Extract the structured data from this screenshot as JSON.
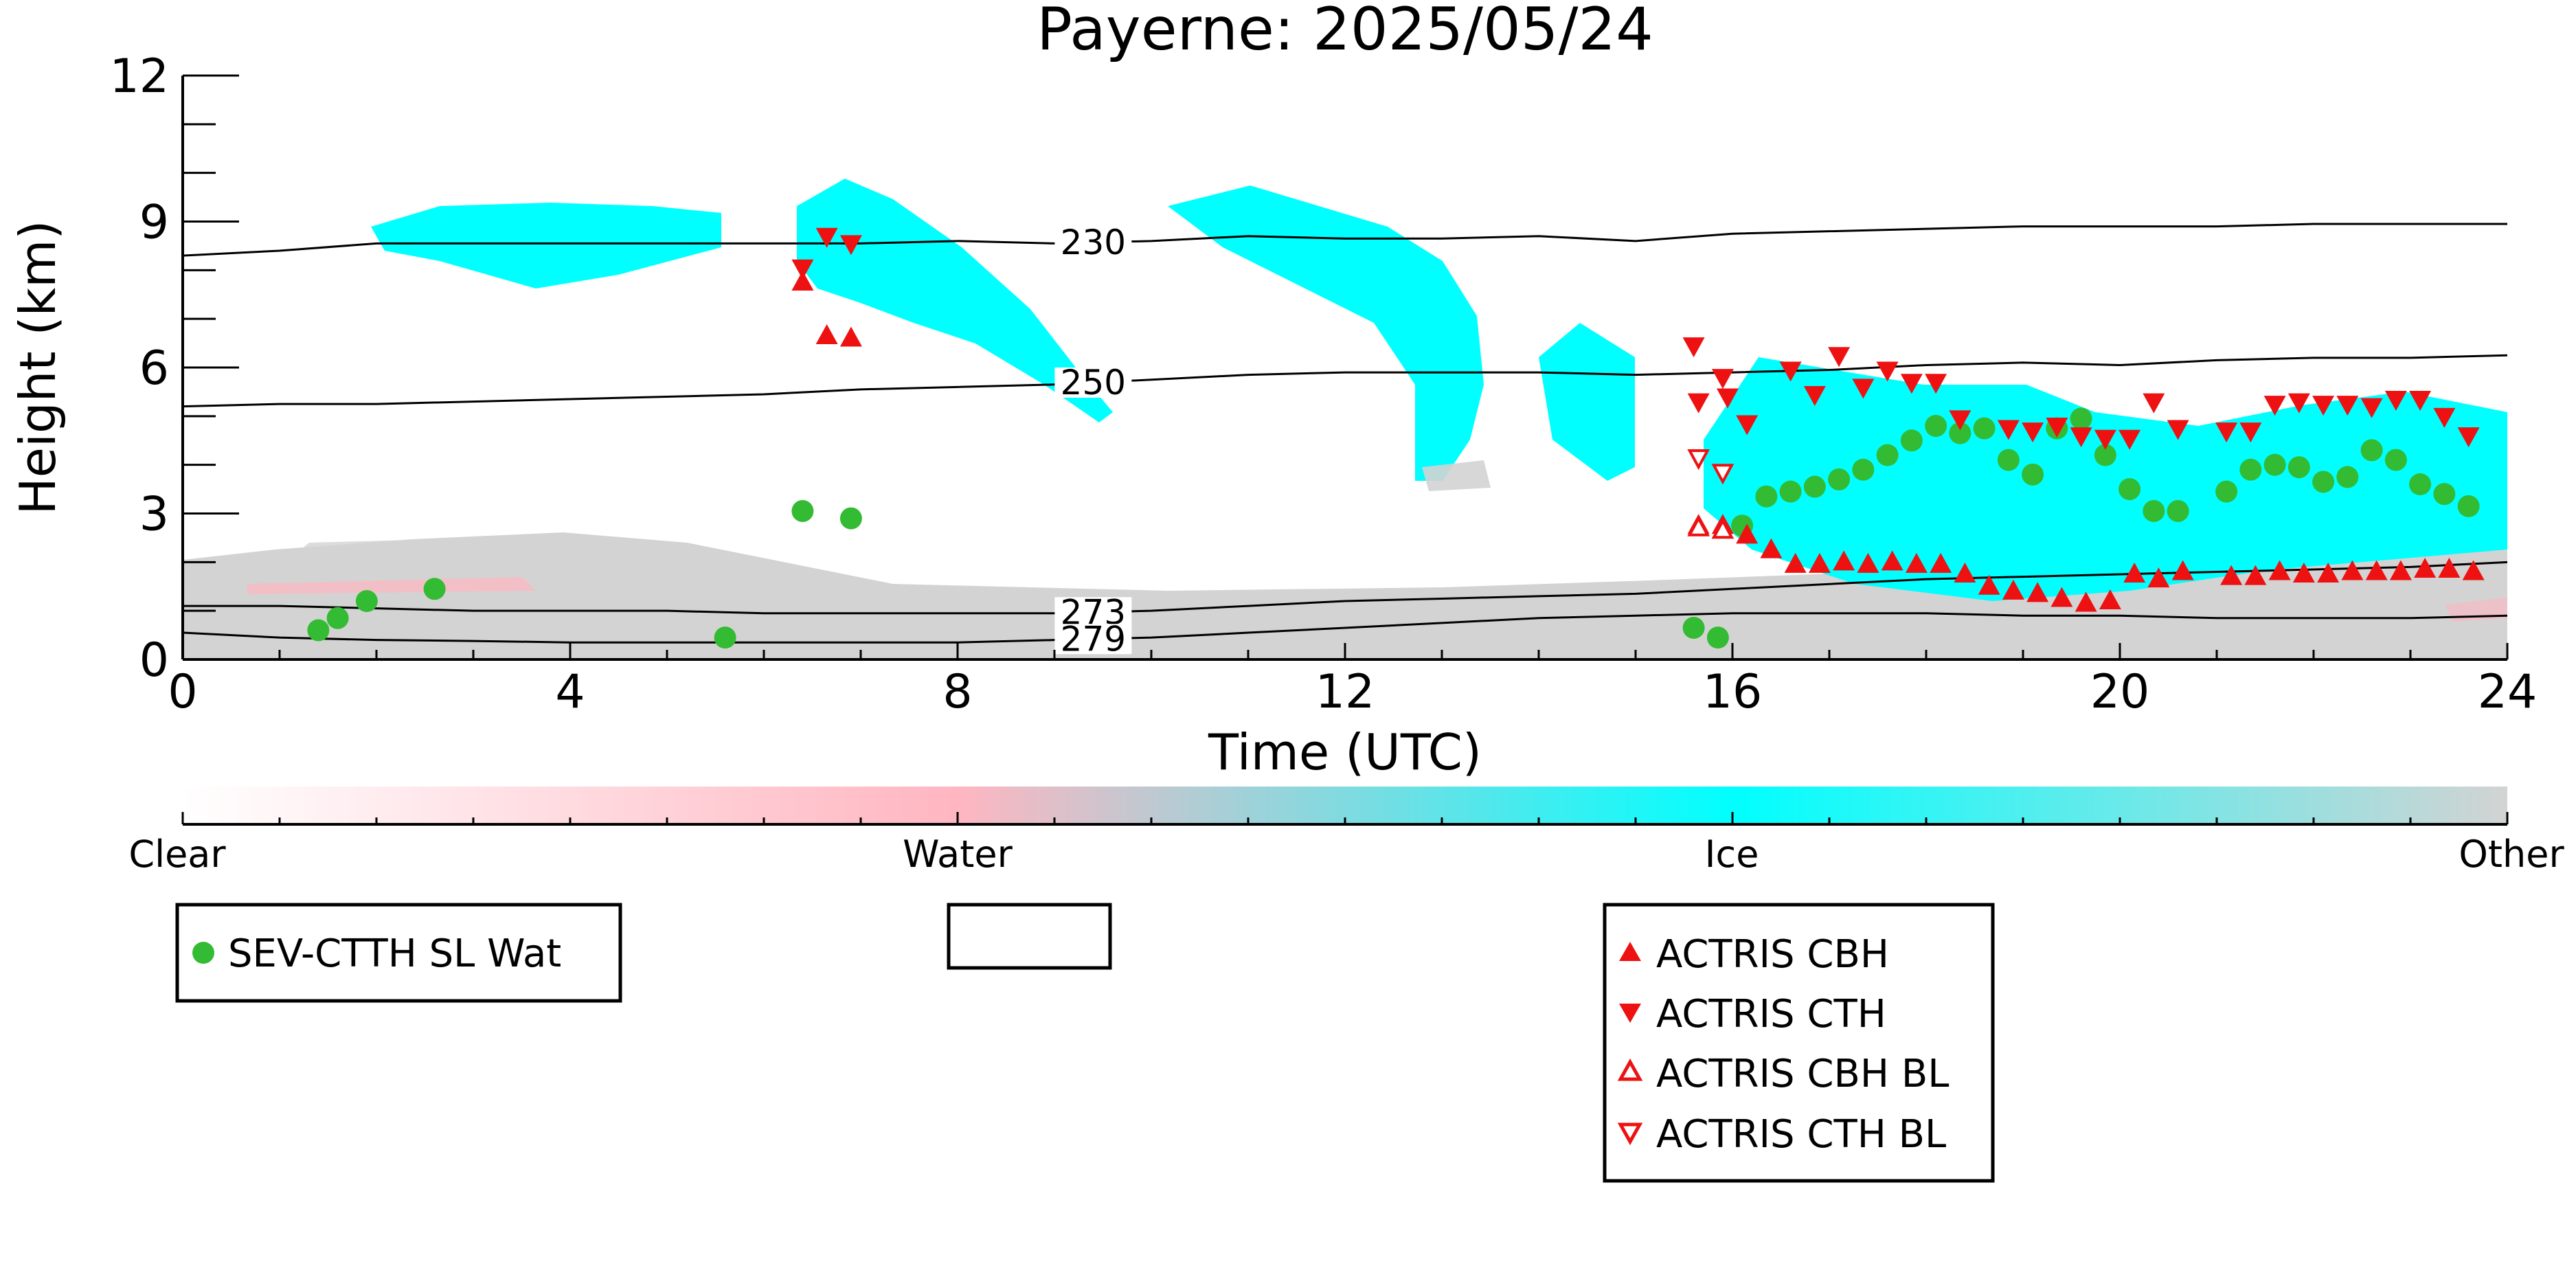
{
  "chart_data": {
    "type": "scatter",
    "title": "Payerne: 2025/05/24",
    "xlabel": "Time (UTC)",
    "ylabel": "Height (km)",
    "xlim": [
      0,
      24
    ],
    "ylim": [
      0,
      12
    ],
    "xticks": [
      0,
      4,
      8,
      12,
      16,
      20,
      24
    ],
    "yticks": [
      0,
      3,
      6,
      9,
      12
    ],
    "background": "cloud-phase classification field (Clear / Water / Ice / Other)",
    "contours": [
      {
        "label": "230",
        "label_x": 9.4,
        "x": [
          0,
          1,
          2,
          3,
          4,
          5,
          6,
          7,
          8,
          9,
          10,
          11,
          12,
          13,
          14,
          15,
          16,
          17,
          18,
          19,
          20,
          21,
          22,
          23,
          24
        ],
        "y": [
          8.3,
          8.4,
          8.55,
          8.55,
          8.55,
          8.55,
          8.55,
          8.55,
          8.6,
          8.55,
          8.6,
          8.7,
          8.65,
          8.65,
          8.7,
          8.6,
          8.75,
          8.8,
          8.85,
          8.9,
          8.9,
          8.9,
          8.95,
          8.95,
          8.95
        ]
      },
      {
        "label": "250",
        "label_x": 9.4,
        "x": [
          0,
          1,
          2,
          3,
          4,
          5,
          6,
          7,
          8,
          9,
          10,
          11,
          12,
          13,
          14,
          15,
          16,
          17,
          18,
          19,
          20,
          21,
          22,
          23,
          24
        ],
        "y": [
          5.2,
          5.25,
          5.25,
          5.3,
          5.35,
          5.4,
          5.45,
          5.55,
          5.6,
          5.65,
          5.75,
          5.85,
          5.9,
          5.9,
          5.9,
          5.85,
          5.9,
          5.95,
          6.05,
          6.1,
          6.05,
          6.15,
          6.2,
          6.2,
          6.25
        ]
      },
      {
        "label": "273",
        "label_x": 9.4,
        "x": [
          0,
          1,
          2,
          3,
          4,
          5,
          6,
          7,
          8,
          9,
          10,
          11,
          12,
          13,
          14,
          15,
          16,
          17,
          18,
          19,
          20,
          21,
          22,
          23,
          24
        ],
        "y": [
          1.1,
          1.1,
          1.05,
          1.0,
          1.0,
          1.0,
          0.95,
          0.95,
          0.95,
          0.95,
          1.0,
          1.1,
          1.2,
          1.25,
          1.3,
          1.35,
          1.45,
          1.55,
          1.65,
          1.7,
          1.75,
          1.8,
          1.85,
          1.9,
          2.0
        ]
      },
      {
        "label": "279",
        "label_x": 9.4,
        "x": [
          0,
          1,
          2,
          3,
          4,
          5,
          6,
          7,
          8,
          9,
          10,
          11,
          12,
          13,
          14,
          15,
          16,
          17,
          18,
          19,
          20,
          21,
          22,
          23,
          24
        ],
        "y": [
          0.55,
          0.45,
          0.4,
          0.38,
          0.35,
          0.35,
          0.35,
          0.35,
          0.35,
          0.4,
          0.45,
          0.55,
          0.65,
          0.75,
          0.85,
          0.9,
          0.95,
          0.95,
          0.95,
          0.9,
          0.9,
          0.85,
          0.85,
          0.85,
          0.9
        ]
      }
    ],
    "series": [
      {
        "name": "SEV-CTTH SL Wat",
        "marker": "filled-circle",
        "color": "#33bb33",
        "x": [
          1.4,
          1.6,
          1.9,
          2.6,
          5.6,
          6.4,
          6.9,
          15.6,
          15.85,
          16.1,
          16.35,
          16.6,
          16.85,
          17.1,
          17.35,
          17.6,
          17.85,
          18.1,
          18.35,
          18.6,
          18.85,
          19.1,
          19.35,
          19.6,
          19.85,
          20.1,
          20.35,
          20.6,
          21.1,
          21.35,
          21.6,
          21.85,
          22.1,
          22.35,
          22.6,
          22.85,
          23.1,
          23.35,
          23.6
        ],
        "y": [
          0.6,
          0.85,
          1.2,
          1.45,
          0.45,
          3.05,
          2.9,
          0.65,
          0.45,
          2.75,
          3.35,
          3.45,
          3.55,
          3.7,
          3.9,
          4.2,
          4.5,
          4.8,
          4.65,
          4.75,
          4.1,
          3.8,
          4.75,
          4.95,
          4.2,
          3.5,
          3.05,
          3.05,
          3.45,
          3.9,
          4.0,
          3.95,
          3.65,
          3.75,
          4.3,
          4.1,
          3.6,
          3.4,
          3.15
        ]
      },
      {
        "name": "ACTRIS CBH",
        "marker": "filled-triangle-up",
        "color": "#ee1111",
        "x": [
          6.4,
          6.65,
          6.9,
          15.65,
          15.9,
          16.15,
          16.4,
          16.65,
          16.9,
          17.15,
          17.4,
          17.65,
          17.9,
          18.15,
          18.4,
          18.65,
          18.9,
          19.15,
          19.4,
          19.65,
          19.9,
          20.15,
          20.4,
          20.65,
          21.15,
          21.4,
          21.65,
          21.9,
          22.15,
          22.4,
          22.65,
          22.9,
          23.15,
          23.4,
          23.65
        ],
        "y": [
          7.75,
          6.65,
          6.6,
          2.75,
          2.75,
          2.55,
          2.25,
          1.95,
          1.95,
          2.0,
          1.95,
          2.0,
          1.95,
          1.95,
          1.75,
          1.5,
          1.4,
          1.35,
          1.25,
          1.15,
          1.2,
          1.75,
          1.65,
          1.8,
          1.7,
          1.7,
          1.8,
          1.75,
          1.75,
          1.8,
          1.8,
          1.8,
          1.85,
          1.85,
          1.8
        ]
      },
      {
        "name": "ACTRIS CTH",
        "marker": "filled-triangle-down",
        "color": "#ee1111",
        "x": [
          6.4,
          6.65,
          6.9,
          15.6,
          15.65,
          15.9,
          15.95,
          16.15,
          16.6,
          16.85,
          17.1,
          17.35,
          17.6,
          17.85,
          18.1,
          18.35,
          18.85,
          19.1,
          19.35,
          19.6,
          19.85,
          20.1,
          20.35,
          20.6,
          21.1,
          21.35,
          21.6,
          21.85,
          22.1,
          22.35,
          22.6,
          22.85,
          23.1,
          23.35,
          23.6
        ],
        "y": [
          8.05,
          8.7,
          8.55,
          6.45,
          5.3,
          5.8,
          5.4,
          4.85,
          5.95,
          5.45,
          6.25,
          5.6,
          5.95,
          5.7,
          5.7,
          4.95,
          4.75,
          4.7,
          4.8,
          4.6,
          4.55,
          4.55,
          5.3,
          4.75,
          4.7,
          4.7,
          5.25,
          5.3,
          5.25,
          5.25,
          5.2,
          5.35,
          5.35,
          5.0,
          4.6
        ]
      },
      {
        "name": "ACTRIS CBH BL",
        "marker": "open-triangle-up",
        "color": "#ee1111",
        "x": [
          15.65,
          15.9
        ],
        "y": [
          2.7,
          2.65
        ]
      },
      {
        "name": "ACTRIS CTH BL",
        "marker": "open-triangle-down",
        "color": "#ee1111",
        "x": [
          15.65,
          15.9
        ],
        "y": [
          4.15,
          3.85
        ]
      }
    ],
    "colorbar": {
      "labels": [
        "Clear",
        "Water",
        "Ice",
        "Other"
      ],
      "colors": [
        "#ffffff",
        "#ffb6c1",
        "#00ffff",
        "#d3d3d3"
      ]
    },
    "colors": {
      "clear": "#ffffff",
      "water": "#ffb6c1",
      "ice": "#00ffff",
      "other": "#d3d3d3"
    },
    "legends": [
      {
        "entries": [
          "SEV-CTTH SL Wat"
        ]
      },
      {
        "entries": []
      },
      {
        "entries": [
          "ACTRIS CBH",
          "ACTRIS CTH",
          "ACTRIS CBH BL",
          "ACTRIS CTH BL"
        ]
      }
    ]
  }
}
